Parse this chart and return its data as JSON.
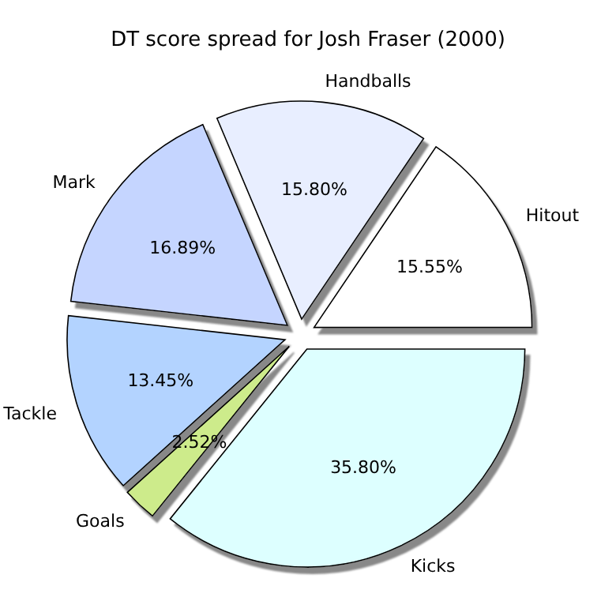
{
  "chart_data": {
    "type": "pie",
    "title": "DT score spread for Josh Fraser (2000)",
    "categories": [
      "Hitout",
      "Handballs",
      "Mark",
      "Tackle",
      "Goals",
      "Kicks"
    ],
    "values": [
      15.55,
      15.8,
      16.89,
      13.45,
      2.52,
      35.8
    ],
    "value_labels": [
      "15.55%",
      "15.80%",
      "16.89%",
      "13.45%",
      "2.52%",
      "35.80%"
    ],
    "colors": [
      "#ffffff",
      "#e8eeff",
      "#c5d5ff",
      "#b3d3ff",
      "#cdeb8b",
      "#ddffff"
    ]
  }
}
